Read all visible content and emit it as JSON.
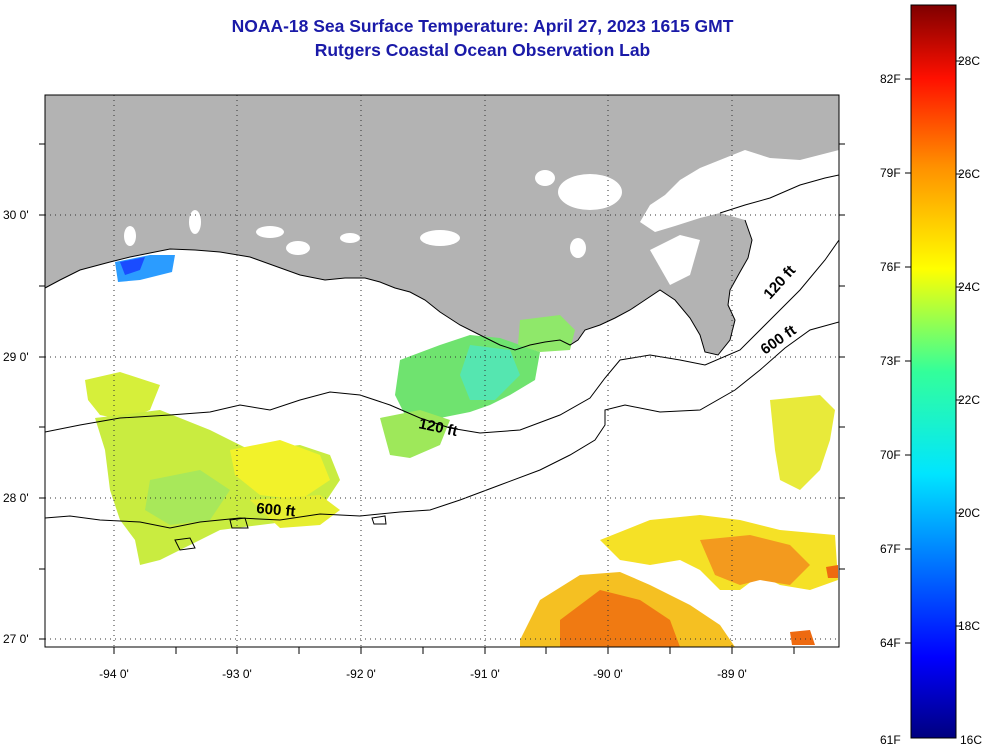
{
  "header": {
    "title_line1": "NOAA-18 Sea Surface Temperature:  April 27, 2023 1615 GMT",
    "title_line2": "Rutgers Coastal Ocean Observation Lab"
  },
  "map": {
    "lat_labels": [
      "30 0'",
      "29 0'",
      "28 0'",
      "27 0'"
    ],
    "lon_labels": [
      "-94 0'",
      "-93 0'",
      "-92 0'",
      "-91 0'",
      "-90 0'",
      "-89 0'"
    ],
    "isobath_labels": [
      "120 ft",
      "120 ft",
      "600 ft",
      "600 ft"
    ],
    "land_color": "#b3b3b3"
  },
  "colorbar": {
    "fahrenheit_labels": [
      "82F",
      "79F",
      "76F",
      "73F",
      "70F",
      "67F",
      "64F",
      "61F"
    ],
    "celsius_labels": [
      "28C",
      "26C",
      "24C",
      "22C",
      "20C",
      "18C",
      "16C"
    ]
  }
}
